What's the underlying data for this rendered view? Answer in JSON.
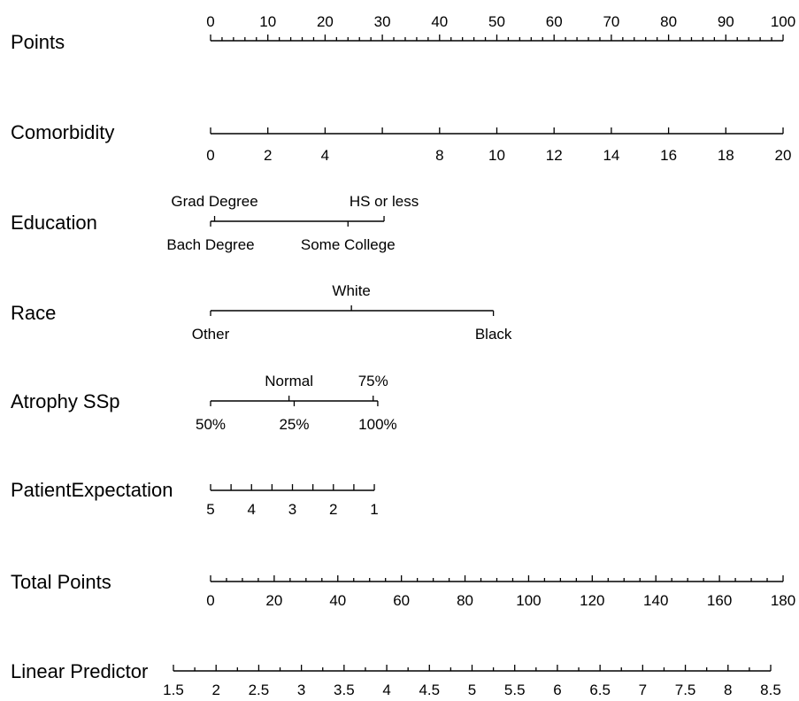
{
  "chart_data": {
    "type": "nomogram",
    "rows": [
      {
        "label": "Points",
        "axis": {
          "min": 0,
          "max": 100
        },
        "ticks": [
          "0",
          "10",
          "20",
          "30",
          "40",
          "50",
          "60",
          "70",
          "80",
          "90",
          "100"
        ],
        "tick_values": [
          0,
          10,
          20,
          30,
          40,
          50,
          60,
          70,
          80,
          90,
          100
        ],
        "minor_step": 2,
        "labels_side": "above"
      },
      {
        "label": "Comorbidity",
        "points_range": [
          0,
          100
        ],
        "ticks": [
          "0",
          "2",
          "4",
          "8",
          "10",
          "12",
          "14",
          "16",
          "18",
          "20"
        ],
        "tick_values": [
          0,
          2,
          4,
          8,
          10,
          12,
          14,
          16,
          18,
          20
        ],
        "unlabeled_ticks": [
          6
        ],
        "labels_side": "below"
      },
      {
        "label": "Education",
        "points_range": [
          0,
          30.3
        ],
        "categories": [
          {
            "name": "Bach Degree",
            "points": 0,
            "side": "below"
          },
          {
            "name": "Grad Degree",
            "points": 0.7,
            "side": "above"
          },
          {
            "name": "Some College",
            "points": 24,
            "side": "below"
          },
          {
            "name": "HS or less",
            "points": 30.3,
            "side": "above"
          }
        ]
      },
      {
        "label": "Race",
        "points_range": [
          0,
          49.4
        ],
        "categories": [
          {
            "name": "Other",
            "points": 0,
            "side": "below"
          },
          {
            "name": "White",
            "points": 24.6,
            "side": "above"
          },
          {
            "name": "Black",
            "points": 49.4,
            "side": "below"
          }
        ]
      },
      {
        "label": "Atrophy SSp",
        "points_range": [
          0,
          29.2
        ],
        "categories": [
          {
            "name": "50%",
            "points": 0,
            "side": "below"
          },
          {
            "name": "Normal",
            "points": 13.7,
            "side": "above"
          },
          {
            "name": "25%",
            "points": 14.6,
            "side": "below"
          },
          {
            "name": "75%",
            "points": 28.4,
            "side": "above"
          },
          {
            "name": "100%",
            "points": 29.2,
            "side": "below"
          }
        ]
      },
      {
        "label": "PatientExpectation",
        "points_range": [
          0,
          28.6
        ],
        "ticks": [
          "5",
          "4",
          "3",
          "2",
          "1"
        ],
        "tick_values": [
          5,
          4,
          3,
          2,
          1
        ],
        "tick_points": [
          0,
          7.15,
          14.3,
          21.45,
          28.6
        ],
        "minor_between": true,
        "labels_side": "below"
      },
      {
        "label": "Total Points",
        "axis": {
          "min": 0,
          "max": 180
        },
        "ticks": [
          "0",
          "20",
          "40",
          "60",
          "80",
          "100",
          "120",
          "140",
          "160",
          "180"
        ],
        "tick_values": [
          0,
          20,
          40,
          60,
          80,
          100,
          120,
          140,
          160,
          180
        ],
        "minor_step": 5,
        "labels_side": "below"
      },
      {
        "label": "Linear Predictor",
        "axis": {
          "min": 1.5,
          "max": 8.5
        },
        "ticks": [
          "1.5",
          "2",
          "2.5",
          "3",
          "3.5",
          "4",
          "4.5",
          "5",
          "5.5",
          "6",
          "6.5",
          "7",
          "7.5",
          "8",
          "8.5"
        ],
        "tick_values": [
          1.5,
          2,
          2.5,
          3,
          3.5,
          4,
          4.5,
          5,
          5.5,
          6,
          6.5,
          7,
          7.5,
          8,
          8.5
        ],
        "minor_step": 0.25,
        "labels_side": "below"
      }
    ]
  }
}
